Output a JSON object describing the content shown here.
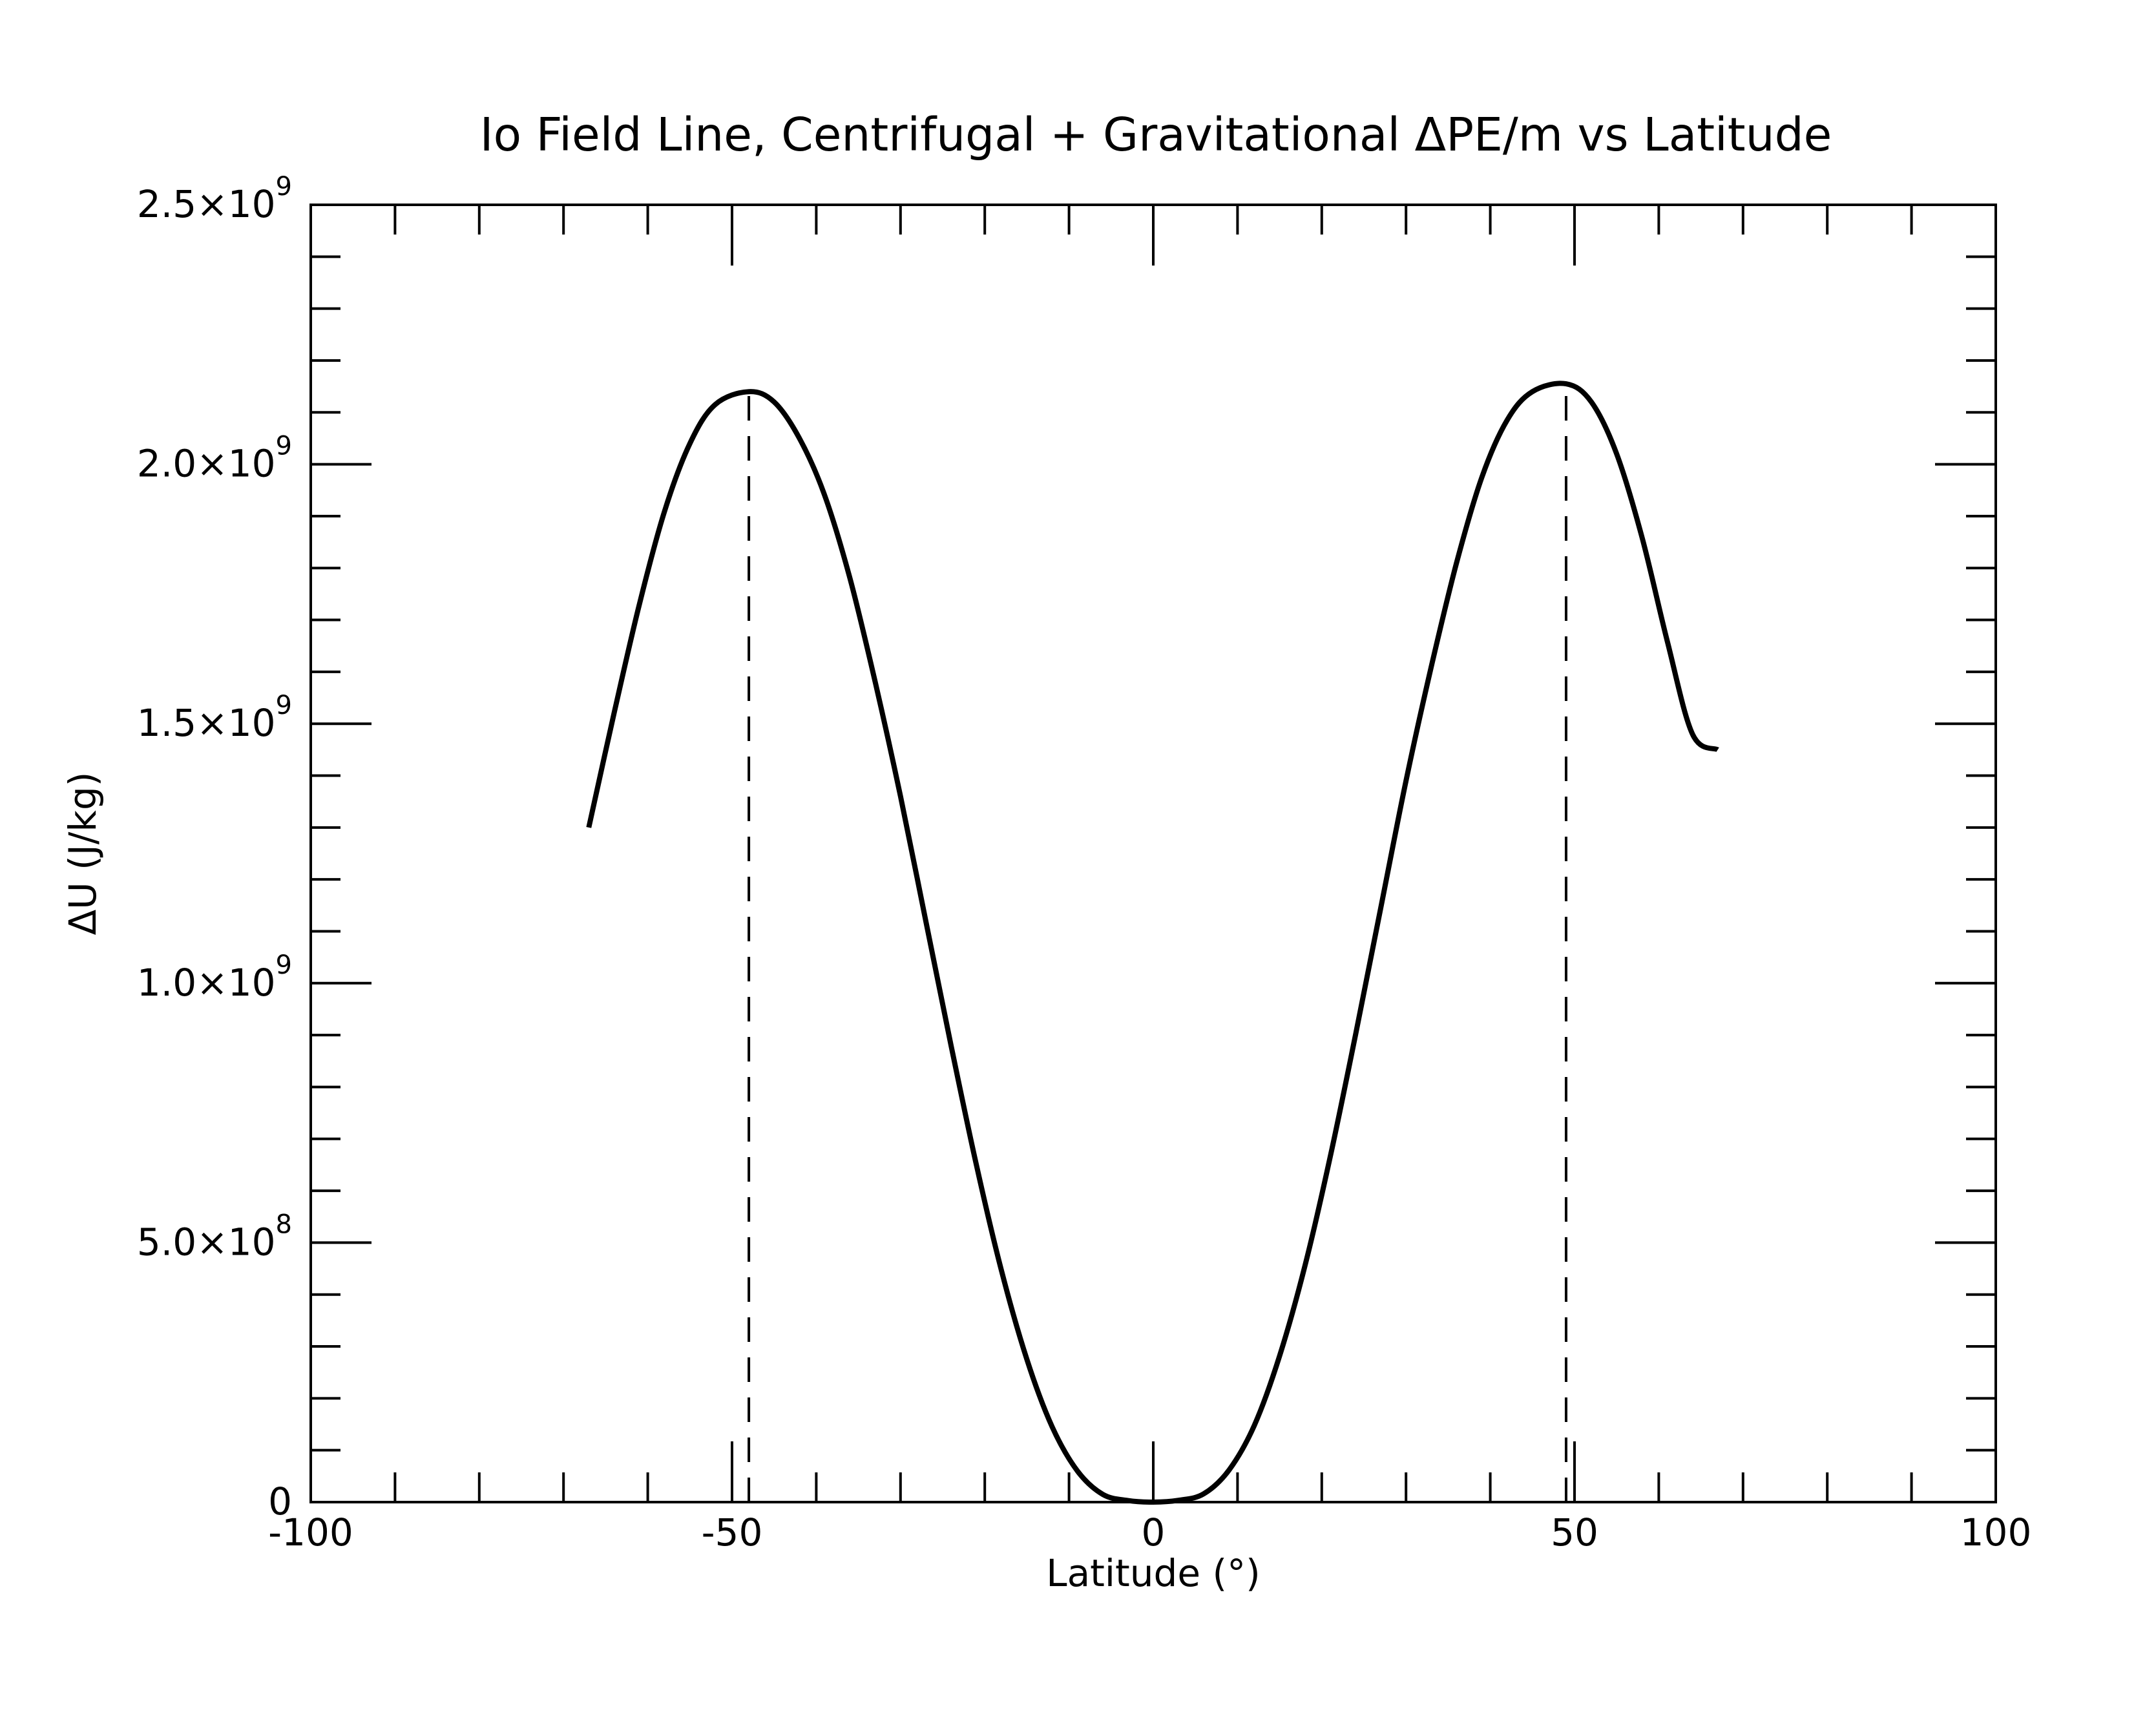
{
  "chart_data": {
    "type": "line",
    "title": "Io Field Line, Centrifugal + Gravitational ΔPE/m vs Latitude",
    "xlabel": "Latitude (°)",
    "ylabel": "ΔU (J/kg)",
    "xlim": [
      -100,
      100
    ],
    "ylim": [
      0,
      2500000000
    ],
    "grid": false,
    "legend": "none",
    "x_ticks": [
      {
        "value": -100,
        "label": "-100"
      },
      {
        "value": -50,
        "label": "-50"
      },
      {
        "value": 0,
        "label": "0"
      },
      {
        "value": 50,
        "label": "50"
      },
      {
        "value": 100,
        "label": "100"
      }
    ],
    "y_ticks": [
      {
        "value": 0,
        "mantissa": "0",
        "exponent": ""
      },
      {
        "value": 500000000,
        "mantissa": "5.0×10",
        "exponent": "8"
      },
      {
        "value": 1000000000,
        "mantissa": "1.0×10",
        "exponent": "9"
      },
      {
        "value": 1500000000,
        "mantissa": "1.5×10",
        "exponent": "9"
      },
      {
        "value": 2000000000,
        "mantissa": "2.0×10",
        "exponent": "9"
      },
      {
        "value": 2500000000,
        "mantissa": "2.5×10",
        "exponent": "9"
      }
    ],
    "series": [
      {
        "color": "#000000",
        "style": "solid",
        "x": [
          -67,
          -64,
          -61,
          -58,
          -55,
          -52,
          -48,
          -45,
          -42,
          -39,
          -36,
          -33,
          -30,
          -27,
          -24,
          -21,
          -18,
          -15,
          -12,
          -9,
          -6,
          -3,
          0,
          3,
          6,
          9,
          12,
          15,
          18,
          21,
          24,
          27,
          30,
          33,
          36,
          39,
          42,
          45,
          49,
          52,
          55,
          58,
          61,
          64,
          67
        ],
        "y": [
          1300000000,
          1520000000,
          1730000000,
          1910000000,
          2040000000,
          2115000000,
          2140000000,
          2120000000,
          2050000000,
          1940000000,
          1780000000,
          1580000000,
          1360000000,
          1120000000,
          880000000,
          650000000,
          445000000,
          275000000,
          145000000,
          60000000,
          15000000,
          3000000,
          0,
          3500000,
          16000000,
          62000000,
          148000000,
          282000000,
          455000000,
          665000000,
          900000000,
          1145000000,
          1390000000,
          1610000000,
          1810000000,
          1975000000,
          2085000000,
          2140000000,
          2155000000,
          2120000000,
          2020000000,
          1860000000,
          1660000000,
          1480000000,
          1450000000
        ]
      }
    ],
    "reference_lines": [
      {
        "orientation": "vertical",
        "x": -48,
        "color": "#000000",
        "style": "dashed"
      },
      {
        "orientation": "vertical",
        "x": 49,
        "color": "#000000",
        "style": "dashed"
      }
    ]
  }
}
